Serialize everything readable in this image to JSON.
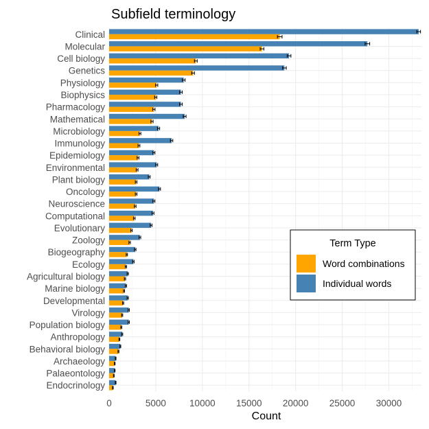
{
  "chart_data": {
    "type": "bar",
    "orientation": "horizontal",
    "title": "Subfield terminology",
    "xlabel": "Count",
    "ylabel": "",
    "xlim": [
      0,
      33500
    ],
    "x_ticks": [
      0,
      5000,
      10000,
      15000,
      20000,
      25000,
      30000
    ],
    "grid": true,
    "error_bars": true,
    "legend": {
      "title": "Term Type",
      "placement": "right"
    },
    "categories": [
      "Clinical",
      "Molecular",
      "Cell biology",
      "Genetics",
      "Physiology",
      "Biophysics",
      "Pharmacology",
      "Mathematical",
      "Microbiology",
      "Immunology",
      "Epidemiology",
      "Environmental",
      "Plant biology",
      "Oncology",
      "Neuroscience",
      "Computational",
      "Evolutionary",
      "Zoology",
      "Biogeography",
      "Ecology",
      "Agricultural biology",
      "Marine biology",
      "Developmental",
      "Virology",
      "Population biology",
      "Anthropology",
      "Behavioral biology",
      "Archaeology",
      "Palaeontology",
      "Endocrinology"
    ],
    "series": [
      {
        "name": "Individual words",
        "color": "#4682B4",
        "values": [
          33200,
          27700,
          19300,
          18800,
          8000,
          7700,
          7700,
          8100,
          5300,
          6700,
          4800,
          5100,
          4300,
          5400,
          4800,
          4700,
          4500,
          3300,
          2800,
          2600,
          2000,
          1800,
          2000,
          2100,
          2100,
          1400,
          1200,
          700,
          600,
          700
        ],
        "errors": [
          200,
          250,
          200,
          200,
          150,
          150,
          150,
          150,
          120,
          130,
          110,
          110,
          100,
          110,
          110,
          110,
          100,
          90,
          80,
          80,
          70,
          70,
          70,
          70,
          70,
          60,
          50,
          40,
          40,
          40
        ]
      },
      {
        "name": "Word combinations",
        "color": "#FFA500",
        "values": [
          18300,
          16400,
          9300,
          9000,
          5100,
          5000,
          4800,
          4600,
          3300,
          3200,
          3100,
          3000,
          2900,
          2900,
          2800,
          2700,
          2400,
          2200,
          1900,
          1800,
          1700,
          1600,
          1500,
          1400,
          1300,
          1100,
          1000,
          600,
          500,
          400
        ],
        "errors": [
          250,
          200,
          150,
          150,
          120,
          120,
          120,
          120,
          100,
          100,
          100,
          100,
          90,
          90,
          90,
          90,
          80,
          80,
          70,
          70,
          70,
          60,
          60,
          60,
          60,
          50,
          50,
          40,
          40,
          40
        ]
      }
    ]
  }
}
